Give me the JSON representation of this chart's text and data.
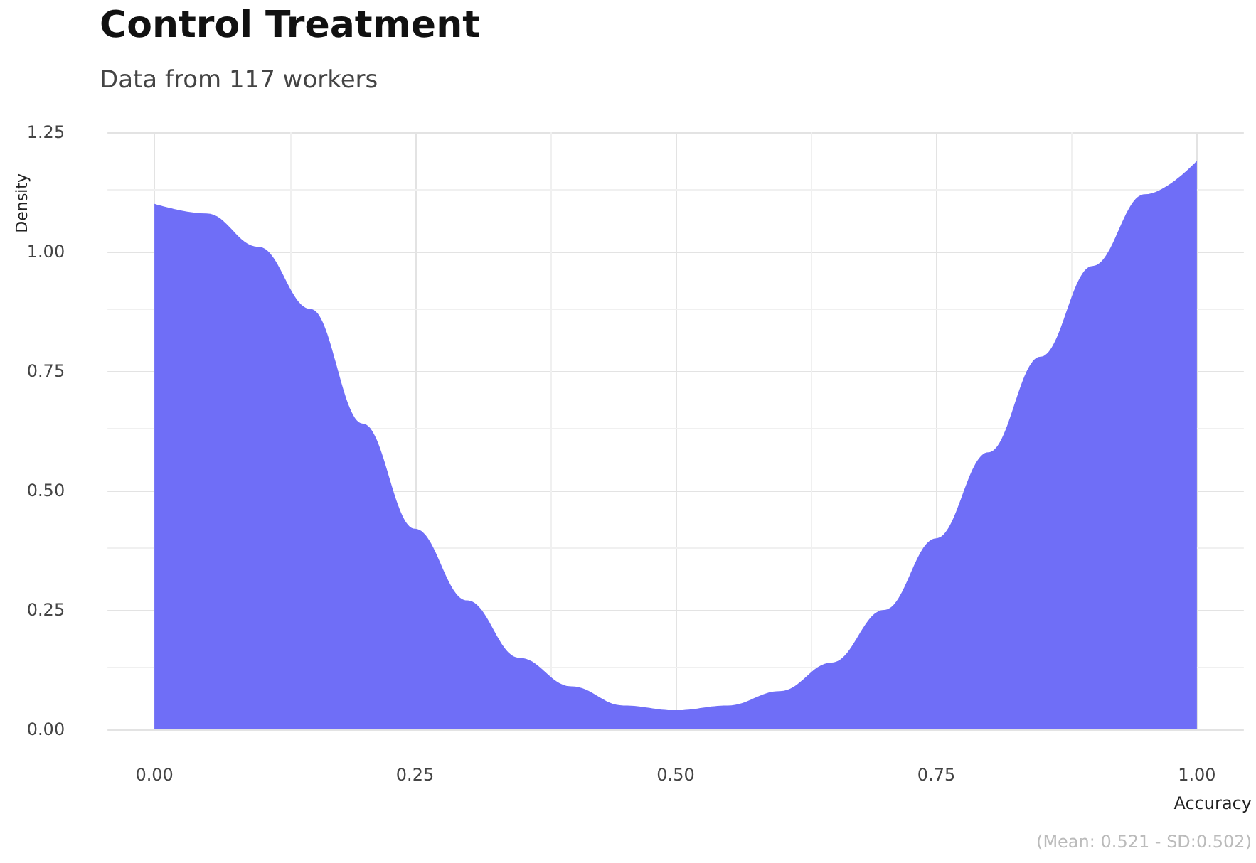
{
  "chart_data": {
    "type": "area",
    "title": "Control Treatment",
    "subtitle": "Data from 117 workers",
    "xlabel": "Accuracy",
    "ylabel": "Density",
    "annotations": [
      "(Mean: 0.521 - SD:0.502)"
    ],
    "x": [
      0,
      0.05,
      0.1,
      0.15,
      0.2,
      0.25,
      0.3,
      0.35,
      0.4,
      0.45,
      0.5,
      0.55,
      0.6,
      0.65,
      0.7,
      0.75,
      0.8,
      0.85,
      0.9,
      0.95,
      1
    ],
    "series": [
      {
        "color": "#6f6ef7",
        "values": [
          1.1,
          1.08,
          1.01,
          0.88,
          0.64,
          0.42,
          0.27,
          0.15,
          0.09,
          0.05,
          0.04,
          0.05,
          0.08,
          0.14,
          0.25,
          0.4,
          0.58,
          0.78,
          0.97,
          1.12,
          1.19
        ]
      }
    ],
    "xlim": [
      -0.045,
      1.045
    ],
    "xticks": [
      {
        "value": 0,
        "label": "0.00"
      },
      {
        "value": 0.25,
        "label": "0.25"
      },
      {
        "value": 0.5,
        "label": "0.50"
      },
      {
        "value": 0.75,
        "label": "0.75"
      },
      {
        "value": 1,
        "label": "1.00"
      }
    ],
    "ylim": [
      0,
      1.25
    ],
    "yticks": [
      {
        "value": 0,
        "label": "0.00"
      },
      {
        "value": 0.25,
        "label": "0.25"
      },
      {
        "value": 0.5,
        "label": "0.50"
      },
      {
        "value": 0.75,
        "label": "0.75"
      },
      {
        "value": 1,
        "label": "1.00"
      },
      {
        "value": 1.25,
        "label": "1.25"
      }
    ],
    "grid": true
  }
}
